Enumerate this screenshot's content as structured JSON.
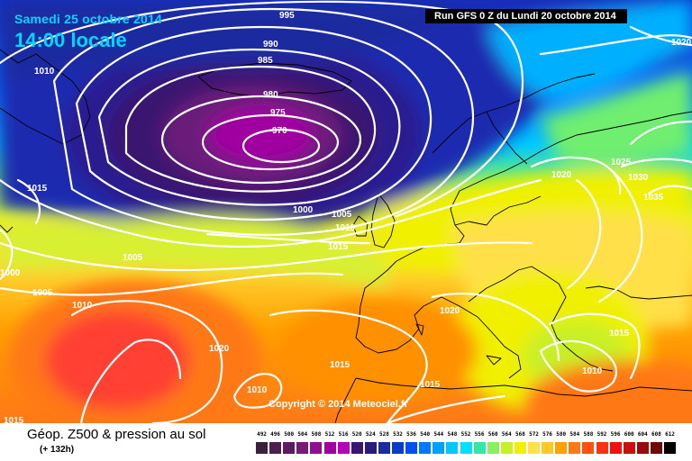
{
  "header": {
    "date": "Samedi 25 octobre 2014",
    "time": "14:00 locale",
    "run": "Run GFS 0 Z du Lundi 20 octobre 2014"
  },
  "copyright": "Copyright © 2014 Meteociel.fr",
  "legend": {
    "title": "Géop. Z500 & pression au sol",
    "subtitle": "(+ 132h)",
    "ticks": [
      "492",
      "496",
      "500",
      "504",
      "508",
      "512",
      "516",
      "520",
      "524",
      "528",
      "532",
      "536",
      "540",
      "544",
      "548",
      "552",
      "556",
      "560",
      "564",
      "568",
      "572",
      "576",
      "580",
      "584",
      "588",
      "592",
      "596",
      "600",
      "604",
      "608",
      "612"
    ],
    "colors": [
      "#3c1f3c",
      "#4d1f4d",
      "#5e1a5e",
      "#761a76",
      "#8e108e",
      "#a000a0",
      "#b800b8",
      "#3b1670",
      "#2a1a80",
      "#1d2aa0",
      "#0b3cc8",
      "#0050f0",
      "#0078ff",
      "#00a0ff",
      "#00c8ff",
      "#00e0ff",
      "#30e8a8",
      "#8af060",
      "#c8f028",
      "#f0f000",
      "#ffe048",
      "#ffc828",
      "#ffa000",
      "#ff7818",
      "#ff5010",
      "#ff3010",
      "#f01010",
      "#c81010",
      "#9a0a0a",
      "#700808",
      "#000000"
    ]
  },
  "map": {
    "pressure_labels": [
      {
        "text": "995"
      },
      {
        "text": "990"
      },
      {
        "text": "985"
      },
      {
        "text": "980"
      },
      {
        "text": "975"
      },
      {
        "text": "970"
      },
      {
        "text": "1010"
      },
      {
        "text": "1020"
      },
      {
        "text": "1015"
      },
      {
        "text": "1000"
      },
      {
        "text": "1005"
      },
      {
        "text": "1010"
      },
      {
        "text": "1015"
      },
      {
        "text": "1005"
      },
      {
        "text": "1000"
      },
      {
        "text": "1005"
      },
      {
        "text": "1010"
      },
      {
        "text": "1020"
      },
      {
        "text": "1025"
      },
      {
        "text": "1030"
      },
      {
        "text": "1035"
      },
      {
        "text": "1020"
      },
      {
        "text": "1020"
      },
      {
        "text": "1015"
      },
      {
        "text": "1010"
      },
      {
        "text": "1015"
      },
      {
        "text": "1015"
      },
      {
        "text": "1010"
      },
      {
        "text": "1015"
      }
    ]
  }
}
